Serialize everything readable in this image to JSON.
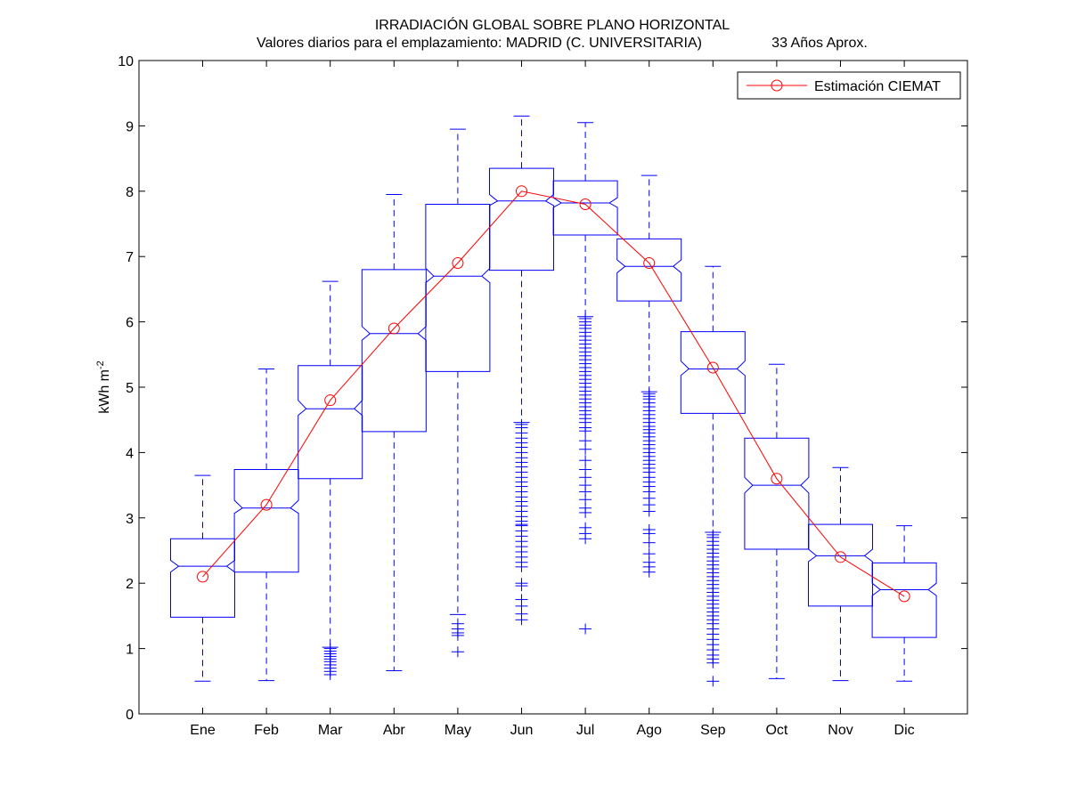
{
  "chart_data": {
    "type": "box",
    "title": "IRRADIACIÓN GLOBAL SOBRE PLANO HORIZONTAL",
    "subtitle_left": "Valores diarios para el emplazamiento:  MADRID (C. UNIVERSITARIA)",
    "subtitle_right": "33 Años Aprox.",
    "ylabel_main": "kWh m",
    "ylabel_sup": "-2",
    "xlabel": "",
    "ylim": [
      0,
      10
    ],
    "yticks": [
      "0",
      "1",
      "2",
      "3",
      "4",
      "5",
      "6",
      "7",
      "8",
      "9",
      "10"
    ],
    "legend": {
      "label": "Estimación CIEMAT",
      "position": "top-right"
    },
    "colors": {
      "box": "#0000ff",
      "estimate": "#ff0000",
      "axes": "#000000"
    },
    "categories": [
      "Ene",
      "Feb",
      "Mar",
      "Abr",
      "May",
      "Jun",
      "Jul",
      "Ago",
      "Sep",
      "Oct",
      "Nov",
      "Dic"
    ],
    "boxes": [
      {
        "q1": 1.48,
        "median": 2.26,
        "q3": 2.68,
        "whisker_low": 0.5,
        "whisker_high": 3.65,
        "notch_low": 2.17,
        "notch_high": 2.35,
        "outliers": []
      },
      {
        "q1": 2.17,
        "median": 3.15,
        "q3": 3.74,
        "whisker_low": 0.51,
        "whisker_high": 5.28,
        "notch_low": 3.07,
        "notch_high": 3.27,
        "outliers": []
      },
      {
        "q1": 3.6,
        "median": 4.67,
        "q3": 5.33,
        "whisker_low": 1.02,
        "whisker_high": 6.62,
        "notch_low": 4.57,
        "notch_high": 4.8,
        "outliers": [
          1.0,
          0.96,
          0.92,
          0.88,
          0.84,
          0.8,
          0.75,
          0.7,
          0.65,
          0.6
        ]
      },
      {
        "q1": 4.32,
        "median": 5.82,
        "q3": 6.8,
        "whisker_low": 0.66,
        "whisker_high": 7.95,
        "notch_low": 5.72,
        "notch_high": 5.93,
        "outliers": []
      },
      {
        "q1": 5.24,
        "median": 6.7,
        "q3": 7.8,
        "whisker_low": 1.52,
        "whisker_high": 8.95,
        "notch_low": 6.6,
        "notch_high": 6.82,
        "outliers": [
          1.38,
          1.3,
          1.24,
          1.2,
          0.95
        ]
      },
      {
        "q1": 6.79,
        "median": 7.85,
        "q3": 8.35,
        "whisker_low": 4.46,
        "whisker_high": 9.15,
        "notch_low": 7.78,
        "notch_high": 7.95,
        "outliers": [
          4.43,
          4.38,
          4.3,
          4.22,
          4.15,
          4.08,
          4.0,
          3.92,
          3.85,
          3.78,
          3.7,
          3.62,
          3.55,
          3.48,
          3.4,
          3.32,
          3.25,
          3.18,
          3.1,
          3.02,
          2.95,
          2.9,
          2.88,
          2.8,
          2.72,
          2.64,
          2.56,
          2.48,
          2.4,
          2.32,
          2.25,
          2.0,
          1.96,
          1.75,
          1.65,
          1.53,
          1.44
        ]
      },
      {
        "q1": 7.33,
        "median": 7.82,
        "q3": 8.16,
        "whisker_low": 6.08,
        "whisker_high": 9.05,
        "notch_low": 7.75,
        "notch_high": 7.9,
        "outliers": [
          6.05,
          6.0,
          5.95,
          5.9,
          5.84,
          5.78,
          5.72,
          5.66,
          5.6,
          5.54,
          5.48,
          5.42,
          5.36,
          5.3,
          5.24,
          5.18,
          5.12,
          5.06,
          5.0,
          4.94,
          4.88,
          4.82,
          4.76,
          4.7,
          4.64,
          4.58,
          4.52,
          4.46,
          4.38,
          4.33,
          4.18,
          4.05,
          3.88,
          3.74,
          3.62,
          3.5,
          3.4,
          3.28,
          3.15,
          3.08,
          2.85,
          2.76,
          2.68,
          1.3
        ]
      },
      {
        "q1": 6.32,
        "median": 6.85,
        "q3": 7.27,
        "whisker_low": 4.93,
        "whisker_high": 8.24,
        "notch_low": 6.75,
        "notch_high": 6.95,
        "outliers": [
          4.9,
          4.86,
          4.82,
          4.76,
          4.7,
          4.64,
          4.58,
          4.52,
          4.46,
          4.4,
          4.35,
          4.3,
          4.24,
          4.18,
          4.12,
          4.06,
          4.0,
          3.94,
          3.88,
          3.82,
          3.76,
          3.7,
          3.62,
          3.55,
          3.48,
          3.4,
          3.3,
          3.2,
          3.1,
          2.82,
          2.76,
          2.62,
          2.45,
          2.32,
          2.25,
          2.17
        ]
      },
      {
        "q1": 4.6,
        "median": 5.28,
        "q3": 5.85,
        "whisker_low": 2.78,
        "whisker_high": 6.85,
        "notch_low": 5.18,
        "notch_high": 5.4,
        "outliers": [
          2.74,
          2.7,
          2.64,
          2.58,
          2.52,
          2.46,
          2.4,
          2.34,
          2.28,
          2.22,
          2.16,
          2.1,
          2.04,
          1.98,
          1.92,
          1.86,
          1.8,
          1.74,
          1.68,
          1.62,
          1.56,
          1.5,
          1.44,
          1.38,
          1.3,
          1.22,
          1.14,
          1.06,
          0.98,
          0.9,
          0.84,
          0.78,
          0.5
        ]
      },
      {
        "q1": 2.52,
        "median": 3.5,
        "q3": 4.22,
        "whisker_low": 0.54,
        "whisker_high": 5.35,
        "notch_low": 3.38,
        "notch_high": 3.62,
        "outliers": []
      },
      {
        "q1": 1.65,
        "median": 2.42,
        "q3": 2.9,
        "whisker_low": 0.51,
        "whisker_high": 3.77,
        "notch_low": 2.33,
        "notch_high": 2.52,
        "outliers": []
      },
      {
        "q1": 1.17,
        "median": 1.9,
        "q3": 2.31,
        "whisker_low": 0.5,
        "whisker_high": 2.88,
        "notch_low": 1.81,
        "notch_high": 2.0,
        "outliers": []
      }
    ],
    "series": [
      {
        "name": "Estimación CIEMAT",
        "values": [
          2.1,
          3.2,
          4.8,
          5.9,
          6.9,
          8.0,
          7.8,
          6.9,
          5.3,
          3.6,
          2.4,
          1.8
        ]
      }
    ]
  }
}
